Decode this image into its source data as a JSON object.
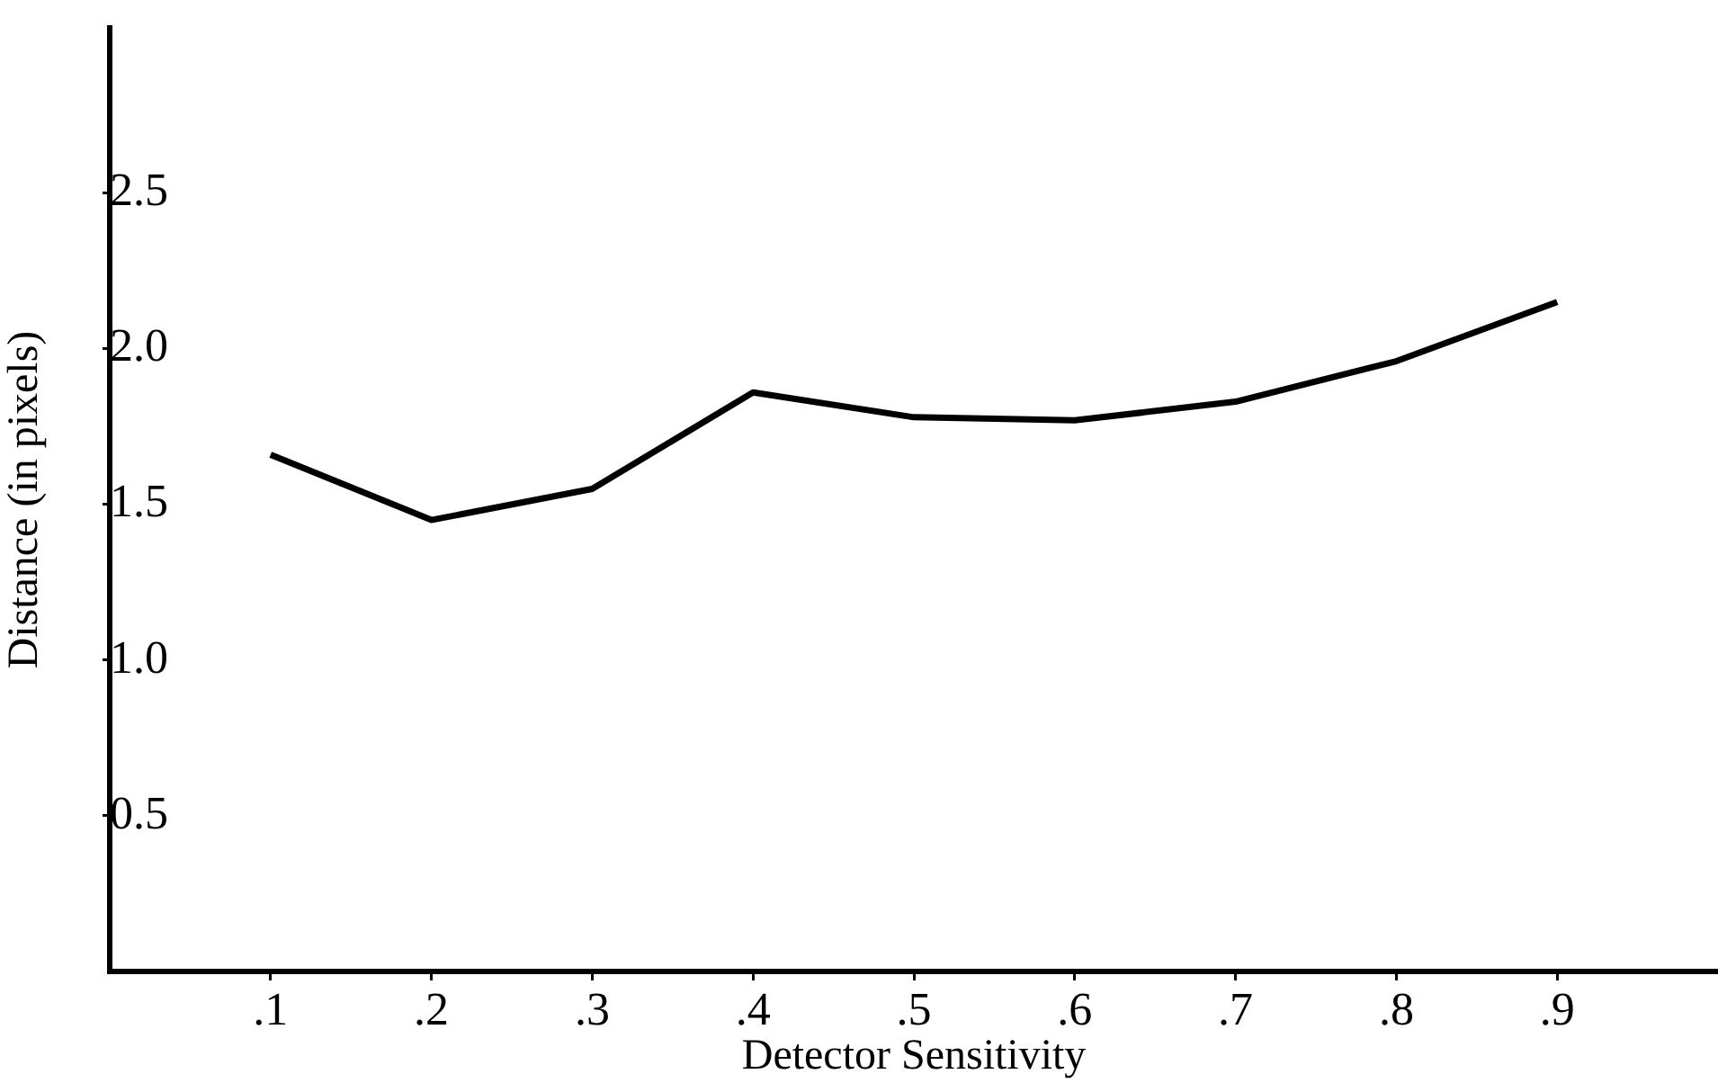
{
  "chart_data": {
    "type": "line",
    "xlabel": "Detector Sensitivity",
    "ylabel": "Distance (in pixels)",
    "x": [
      0.1,
      0.2,
      0.3,
      0.4,
      0.5,
      0.6,
      0.7,
      0.8,
      0.9
    ],
    "series": [
      {
        "color": "#000000",
        "values": [
          1.66,
          1.45,
          1.55,
          1.86,
          1.78,
          1.77,
          1.83,
          1.96,
          2.15
        ]
      }
    ],
    "xlim": [
      0,
      1
    ],
    "ylim": [
      0,
      3.03
    ],
    "xticks": [
      {
        "value": 0.1,
        "label": ".1"
      },
      {
        "value": 0.2,
        "label": ".2"
      },
      {
        "value": 0.3,
        "label": ".3"
      },
      {
        "value": 0.4,
        "label": ".4"
      },
      {
        "value": 0.5,
        "label": ".5"
      },
      {
        "value": 0.6,
        "label": ".6"
      },
      {
        "value": 0.7,
        "label": ".7"
      },
      {
        "value": 0.8,
        "label": ".8"
      },
      {
        "value": 0.9,
        "label": ".9"
      }
    ],
    "yticks": [
      {
        "value": 0.5,
        "label": "0.5"
      },
      {
        "value": 1,
        "label": "1.0"
      },
      {
        "value": 1.5,
        "label": "1.5"
      },
      {
        "value": 2,
        "label": "2.0"
      },
      {
        "value": 2.5,
        "label": "2.5"
      }
    ],
    "grid": false,
    "legend": false,
    "marker": "none",
    "line_style": "solid"
  }
}
